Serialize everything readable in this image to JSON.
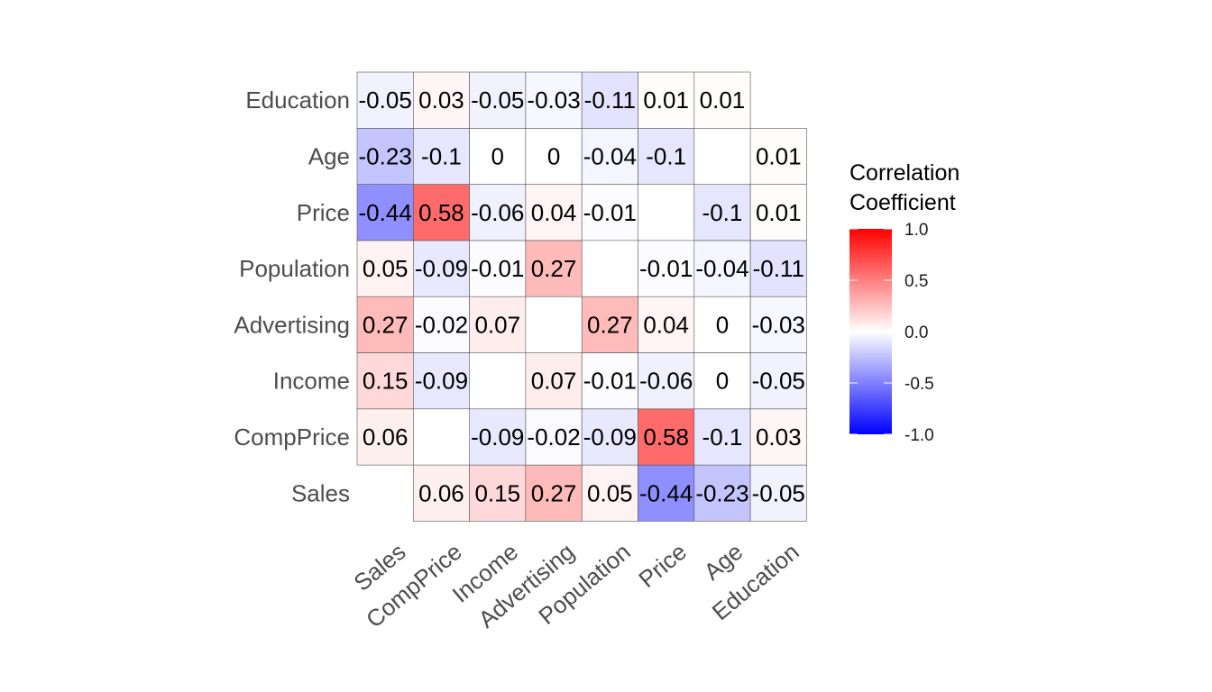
{
  "chart_data": {
    "type": "heatmap",
    "x_categories": [
      "Sales",
      "CompPrice",
      "Income",
      "Advertising",
      "Population",
      "Price",
      "Age",
      "Education"
    ],
    "y_categories": [
      "Sales",
      "CompPrice",
      "Income",
      "Advertising",
      "Population",
      "Price",
      "Age",
      "Education"
    ],
    "matrix": [
      [
        null,
        0.06,
        0.15,
        0.27,
        0.05,
        -0.44,
        -0.23,
        -0.05
      ],
      [
        0.06,
        null,
        -0.09,
        -0.02,
        -0.09,
        0.58,
        -0.1,
        0.03
      ],
      [
        0.15,
        -0.09,
        null,
        0.07,
        -0.01,
        -0.06,
        0,
        -0.05
      ],
      [
        0.27,
        -0.02,
        0.07,
        null,
        0.27,
        0.04,
        0,
        -0.03
      ],
      [
        0.05,
        -0.09,
        -0.01,
        0.27,
        null,
        -0.01,
        -0.04,
        -0.11
      ],
      [
        -0.44,
        0.58,
        -0.06,
        0.04,
        -0.01,
        null,
        -0.1,
        0.01
      ],
      [
        -0.23,
        -0.1,
        0,
        0,
        -0.04,
        -0.1,
        null,
        0.01
      ],
      [
        -0.05,
        0.03,
        -0.05,
        -0.03,
        -0.11,
        0.01,
        0.01,
        null
      ]
    ],
    "legend": {
      "title_lines": [
        "Correlation",
        "Coefficient"
      ],
      "ticks": [
        1.0,
        0.5,
        0.0,
        -0.5,
        -1.0
      ],
      "tick_labels": [
        "1.0",
        "0.5",
        "0.0",
        "-0.5",
        "-1.0"
      ],
      "range": [
        -1,
        1
      ],
      "colors": {
        "low": "#0000ff",
        "mid": "#ffffff",
        "high": "#ff0000"
      },
      "placement": "right"
    },
    "grid": false
  }
}
